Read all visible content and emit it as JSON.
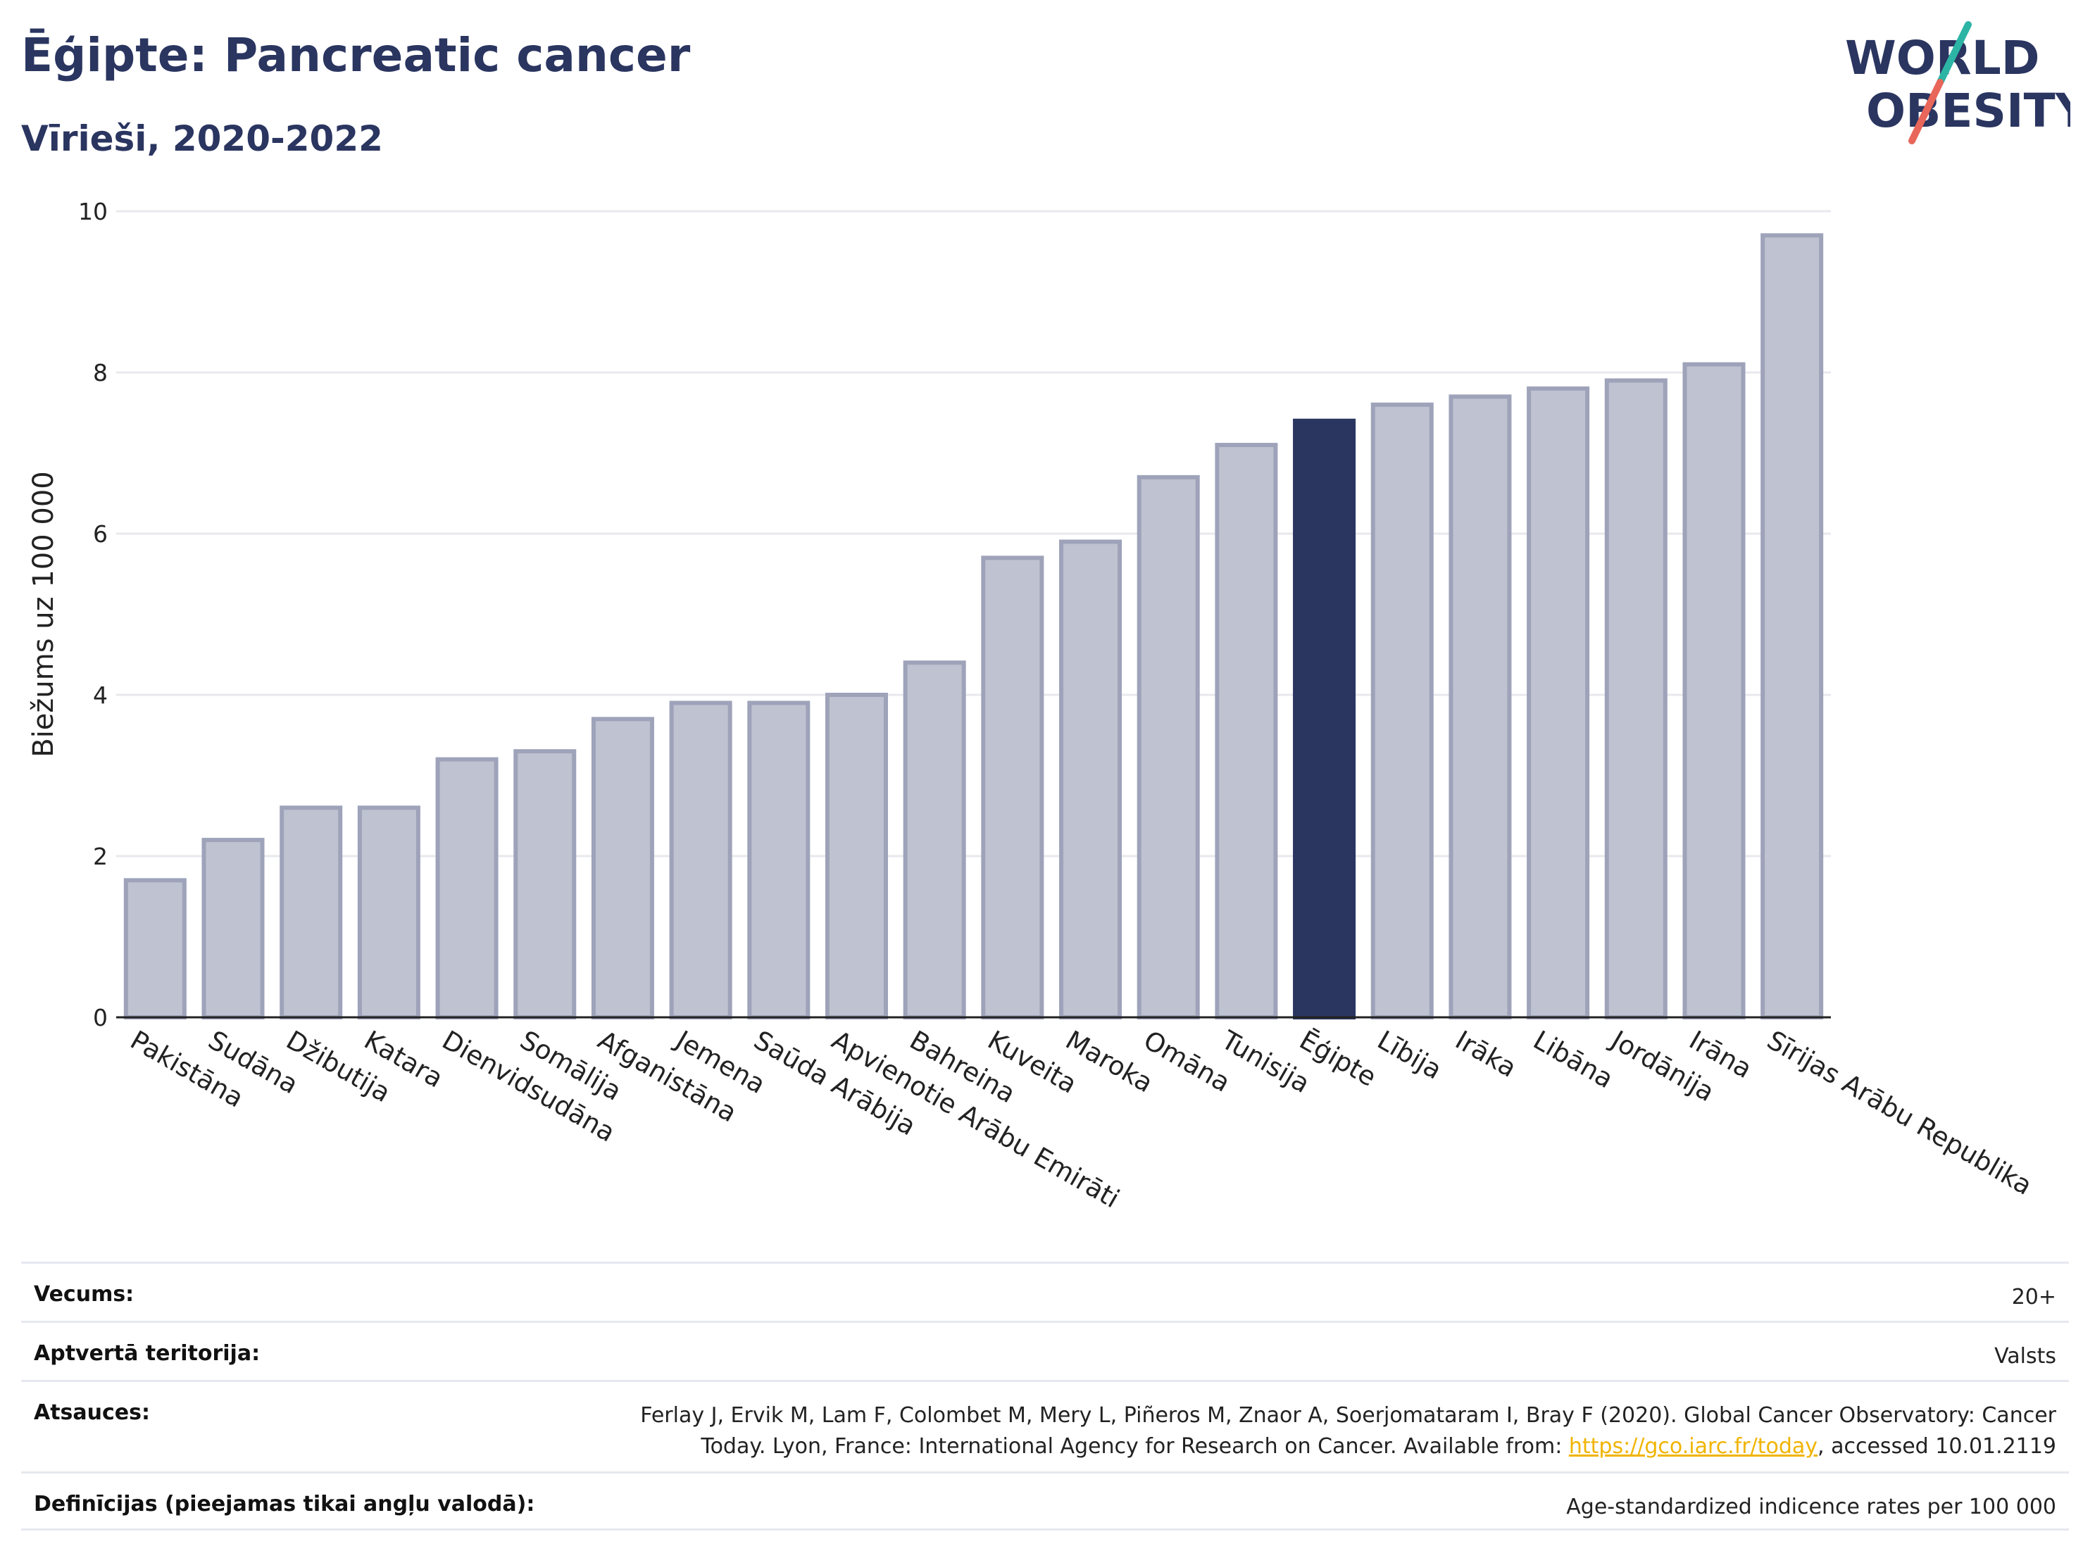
{
  "header": {
    "title": "Ēģipte: Pancreatic cancer",
    "subtitle": "Vīrieši, 2020-2022"
  },
  "logo": {
    "line1": "WORLD",
    "line2": "OBESITY",
    "accent_colors": [
      "#2cb5a5",
      "#e8665a"
    ],
    "text_color": "#2a3560"
  },
  "chart_data": {
    "type": "bar",
    "categories": [
      "Pakistāna",
      "Sudāna",
      "Džibutija",
      "Katara",
      "Dienvidsudāna",
      "Somālija",
      "Afganistāna",
      "Jemena",
      "Saūda Arābija",
      "Apvienotie Arābu Emirāti",
      "Bahreina",
      "Kuveita",
      "Maroka",
      "Omāna",
      "Tunisija",
      "Ēģipte",
      "Lībija",
      "Irāka",
      "Libāna",
      "Jordānija",
      "Irāna",
      "Sīrijas Arābu Republika"
    ],
    "values": [
      1.7,
      2.2,
      2.6,
      2.6,
      3.2,
      3.3,
      3.7,
      3.9,
      3.9,
      4.0,
      4.4,
      5.7,
      5.9,
      6.7,
      7.1,
      7.4,
      7.6,
      7.7,
      7.8,
      7.9,
      8.1,
      9.7
    ],
    "highlight": "Ēģipte",
    "ylabel": "Biežums uz 100 000",
    "ylim": [
      0,
      10
    ],
    "yticks": [
      0,
      2,
      4,
      6,
      8,
      10
    ],
    "grid": true,
    "colors": {
      "bar": "#bfc2d0",
      "bar_border": "#9ea3ba",
      "highlight": "#2a3560",
      "grid": "#e8e9ee",
      "axis": "#222222"
    }
  },
  "meta": {
    "rows": [
      {
        "key": "Vecums:",
        "value": "20+"
      },
      {
        "key": "Aptvertā teritorija:",
        "value": "Valsts"
      },
      {
        "key": "Atsauces:",
        "value_line1": "Ferlay J, Ervik M, Lam F, Colombet M, Mery L, Piñeros M, Znaor A, Soerjomataram I, Bray F (2020). Global Cancer Observatory: Cancer",
        "value_line2_pre": "Today. Lyon, France: International Agency for Research on Cancer. Available from: ",
        "link": "https://gco.iarc.fr/today",
        "value_line2_post": ", accessed 10.01.2119"
      },
      {
        "key": "Definīcijas (pieejamas tikai angļu valodā):",
        "value": "Age-standardized indicence rates per 100 000"
      }
    ]
  }
}
